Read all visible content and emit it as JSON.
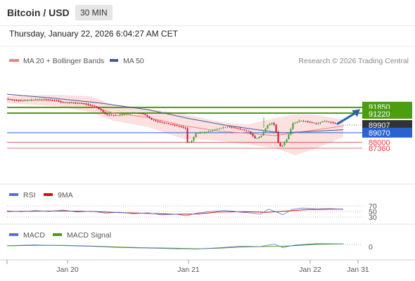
{
  "header": {
    "title": "Bitcoin / USD",
    "timeframe": "30 MIN"
  },
  "timestamp": "Thursday, January 22, 2026 6:04:27 AM CET",
  "colors": {
    "up_candle": "#33a02c",
    "down_candle": "#c0152a",
    "bands_fill": "#fde0e0",
    "ma20": "#f08080",
    "ma50": "#3d5a99",
    "resistance": "#4a9e10",
    "pivot": "#2a62d0",
    "support": "#e24040",
    "arrow": "#2e62a8",
    "rsi": "#5470d0",
    "rsi_ma": "#d01010",
    "macd": "#5470d0",
    "macd_signal": "#4a9e10"
  },
  "chart_data": [
    {
      "type": "candlestick",
      "title": "Bitcoin / USD",
      "legend": [
        "MA 20 + Bollinger Bands",
        "MA 50"
      ],
      "credit": "Research © 2026 Trading Central",
      "x_ticks": [
        "Jan 20",
        "Jan 21",
        "Jan 22",
        "Jan 31"
      ],
      "levels": [
        {
          "label": "91850",
          "value": 91850,
          "kind": "resistance"
        },
        {
          "label": "91220",
          "value": 91220,
          "kind": "resistance"
        },
        {
          "label": "89907",
          "value": 89907,
          "kind": "last"
        },
        {
          "label": "89070",
          "value": 89070,
          "kind": "pivot"
        },
        {
          "label": "88000",
          "value": 88000,
          "kind": "support"
        },
        {
          "label": "87360",
          "value": 87360,
          "kind": "support"
        }
      ],
      "price_path": [
        [
          0,
          92800
        ],
        [
          10,
          92650
        ],
        [
          22,
          92550
        ],
        [
          38,
          92700
        ],
        [
          52,
          92750
        ],
        [
          62,
          92700
        ],
        [
          72,
          92600
        ],
        [
          80,
          92350
        ],
        [
          95,
          92350
        ],
        [
          110,
          92280
        ],
        [
          125,
          92000
        ],
        [
          135,
          91550
        ],
        [
          142,
          91050
        ],
        [
          158,
          90950
        ],
        [
          172,
          91150
        ],
        [
          185,
          91250
        ],
        [
          196,
          91100
        ],
        [
          206,
          90550
        ],
        [
          218,
          90250
        ],
        [
          230,
          90050
        ],
        [
          245,
          89800
        ],
        [
          255,
          89550
        ],
        [
          258,
          88000
        ],
        [
          263,
          88050
        ],
        [
          270,
          89000
        ],
        [
          285,
          89150
        ],
        [
          300,
          89450
        ],
        [
          315,
          89750
        ],
        [
          330,
          89500
        ],
        [
          345,
          89200
        ],
        [
          355,
          88350
        ],
        [
          363,
          88750
        ],
        [
          372,
          89900
        ],
        [
          380,
          90200
        ],
        [
          385,
          88900
        ],
        [
          388,
          87500
        ],
        [
          393,
          87700
        ],
        [
          400,
          88450
        ],
        [
          408,
          90100
        ],
        [
          418,
          90400
        ],
        [
          430,
          90250
        ],
        [
          442,
          90050
        ],
        [
          452,
          90350
        ],
        [
          462,
          90200
        ],
        [
          470,
          90000
        ],
        [
          478,
          89907
        ]
      ],
      "ma50_path": [
        [
          0,
          93300
        ],
        [
          60,
          92900
        ],
        [
          130,
          92350
        ],
        [
          200,
          91600
        ],
        [
          260,
          90600
        ],
        [
          310,
          89900
        ],
        [
          350,
          89450
        ],
        [
          390,
          89050
        ],
        [
          430,
          89200
        ],
        [
          478,
          89400
        ]
      ],
      "ma20_path": [
        [
          0,
          92700
        ],
        [
          60,
          92600
        ],
        [
          110,
          92250
        ],
        [
          150,
          91250
        ],
        [
          200,
          90750
        ],
        [
          250,
          89850
        ],
        [
          300,
          89250
        ],
        [
          350,
          88950
        ],
        [
          380,
          88750
        ],
        [
          410,
          89050
        ],
        [
          450,
          89500
        ],
        [
          478,
          89800
        ]
      ],
      "bb_upper": [
        [
          0,
          93100
        ],
        [
          70,
          93250
        ],
        [
          120,
          93050
        ],
        [
          150,
          92150
        ],
        [
          200,
          91700
        ],
        [
          250,
          91150
        ],
        [
          300,
          90300
        ],
        [
          340,
          89950
        ],
        [
          380,
          90650
        ],
        [
          410,
          91100
        ],
        [
          440,
          91050
        ],
        [
          478,
          90500
        ]
      ],
      "bb_lower": [
        [
          0,
          92300
        ],
        [
          70,
          92000
        ],
        [
          120,
          91300
        ],
        [
          150,
          90400
        ],
        [
          200,
          89700
        ],
        [
          250,
          88400
        ],
        [
          300,
          88200
        ],
        [
          340,
          87800
        ],
        [
          380,
          87400
        ],
        [
          410,
          86600
        ],
        [
          440,
          87350
        ],
        [
          478,
          88600
        ]
      ]
    },
    {
      "type": "line",
      "series": [
        {
          "name": "RSI"
        },
        {
          "name": "9MA"
        }
      ],
      "y_ticks": [
        "70",
        "50",
        "30"
      ],
      "rsi_path": [
        [
          0,
          52
        ],
        [
          20,
          49
        ],
        [
          40,
          53
        ],
        [
          60,
          50
        ],
        [
          80,
          55
        ],
        [
          100,
          48
        ],
        [
          120,
          51
        ],
        [
          140,
          44
        ],
        [
          160,
          47
        ],
        [
          180,
          42
        ],
        [
          200,
          45
        ],
        [
          220,
          38
        ],
        [
          240,
          40
        ],
        [
          255,
          35
        ],
        [
          270,
          44
        ],
        [
          290,
          50
        ],
        [
          310,
          54
        ],
        [
          330,
          48
        ],
        [
          350,
          44
        ],
        [
          360,
          40
        ],
        [
          372,
          58
        ],
        [
          385,
          46
        ],
        [
          392,
          38
        ],
        [
          405,
          57
        ],
        [
          420,
          62
        ],
        [
          440,
          59
        ],
        [
          460,
          60
        ],
        [
          478,
          58
        ]
      ],
      "rsi_ma_path": [
        [
          0,
          50
        ],
        [
          40,
          51
        ],
        [
          80,
          52
        ],
        [
          120,
          50
        ],
        [
          160,
          46
        ],
        [
          200,
          43
        ],
        [
          240,
          40
        ],
        [
          270,
          41
        ],
        [
          300,
          48
        ],
        [
          340,
          49
        ],
        [
          370,
          47
        ],
        [
          400,
          52
        ],
        [
          430,
          57
        ],
        [
          460,
          58
        ],
        [
          478,
          58
        ]
      ]
    },
    {
      "type": "line",
      "series": [
        {
          "name": "MACD"
        },
        {
          "name": "MACD Signal"
        }
      ],
      "y_ticks": [
        "0"
      ],
      "macd_path": [
        [
          0,
          0.2
        ],
        [
          40,
          0.35
        ],
        [
          80,
          0.2
        ],
        [
          120,
          0.05
        ],
        [
          160,
          -0.2
        ],
        [
          200,
          -0.3
        ],
        [
          240,
          -0.45
        ],
        [
          270,
          -0.5
        ],
        [
          300,
          -0.25
        ],
        [
          330,
          0.05
        ],
        [
          360,
          0.0
        ],
        [
          380,
          0.5
        ],
        [
          392,
          -0.2
        ],
        [
          410,
          0.35
        ],
        [
          440,
          0.6
        ],
        [
          478,
          0.55
        ]
      ],
      "signal_path": [
        [
          0,
          0.15
        ],
        [
          40,
          0.25
        ],
        [
          80,
          0.25
        ],
        [
          120,
          0.1
        ],
        [
          160,
          -0.1
        ],
        [
          200,
          -0.25
        ],
        [
          240,
          -0.35
        ],
        [
          270,
          -0.45
        ],
        [
          300,
          -0.35
        ],
        [
          330,
          -0.1
        ],
        [
          360,
          0.0
        ],
        [
          390,
          0.05
        ],
        [
          410,
          0.2
        ],
        [
          440,
          0.45
        ],
        [
          478,
          0.55
        ]
      ]
    }
  ]
}
